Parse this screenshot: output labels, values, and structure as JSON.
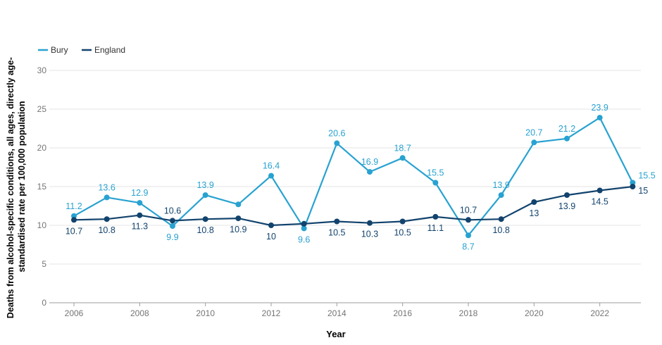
{
  "chart_data": {
    "type": "line",
    "xlabel": "Year",
    "ylabel_lines": [
      "Deaths from alcohol-specific conditions, all ages, directly age-",
      "standardised rate per 100,000 population"
    ],
    "ylim": [
      0,
      30
    ],
    "yticks": [
      0,
      5,
      10,
      15,
      20,
      25,
      30
    ],
    "xlim": [
      2005.25,
      2023.25
    ],
    "xticks": [
      2006,
      2008,
      2010,
      2012,
      2014,
      2016,
      2018,
      2020,
      2022
    ],
    "xtick_labels": [
      "2006",
      "2008",
      "2010",
      "2012",
      "2014",
      "2016",
      "2018",
      "2020",
      "2022"
    ],
    "grid": true,
    "legend_position": "top-left",
    "x": [
      2006,
      2007,
      2008,
      2009,
      2010,
      2011,
      2012,
      2013,
      2014,
      2015,
      2016,
      2017,
      2018,
      2019,
      2020,
      2021,
      2022,
      2023
    ],
    "series": [
      {
        "name": "Bury",
        "color": "#28a2d1",
        "values": [
          11.2,
          13.6,
          12.9,
          9.9,
          13.9,
          12.7,
          16.4,
          9.6,
          20.6,
          16.9,
          18.7,
          15.5,
          8.7,
          13.9,
          20.7,
          21.2,
          23.9,
          15.5
        ],
        "labels": [
          "11.2",
          "13.6",
          "12.9",
          "9.9",
          "13.9",
          "",
          "16.4",
          "9.6",
          "20.6",
          "16.9",
          "18.7",
          "15.5",
          "8.7",
          "13.9",
          "20.7",
          "21.2",
          "23.9",
          "15.5"
        ]
      },
      {
        "name": "England",
        "color": "#12436d",
        "values": [
          10.7,
          10.8,
          11.3,
          10.6,
          10.8,
          10.9,
          10.0,
          10.2,
          10.5,
          10.3,
          10.5,
          11.1,
          10.7,
          10.8,
          13.0,
          13.9,
          14.5,
          15.0
        ],
        "labels": [
          "10.7",
          "10.8",
          "11.3",
          "10.6",
          "10.8",
          "10.9",
          "10",
          "",
          "10.5",
          "10.3",
          "10.5",
          "11.1",
          "10.7",
          "10.8",
          "13",
          "13.9",
          "14.5",
          "15"
        ]
      }
    ]
  }
}
